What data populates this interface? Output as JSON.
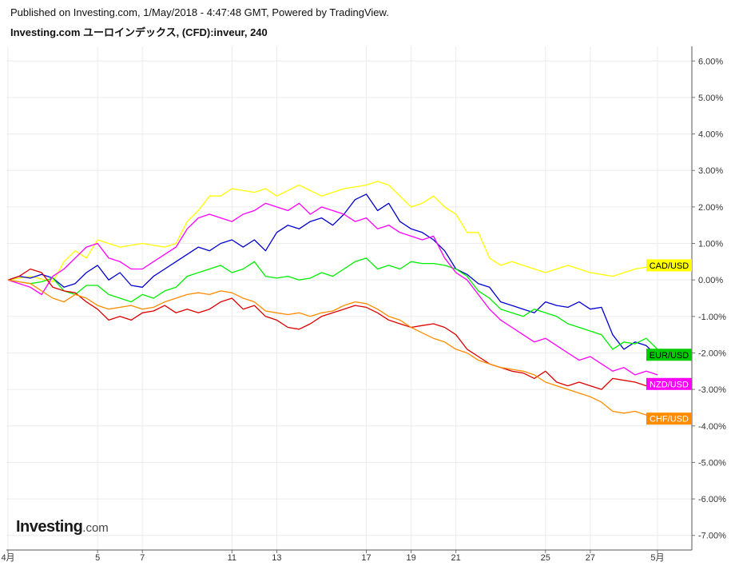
{
  "header": {
    "published": "Published on Investing.com, 1/May/2018 - 4:47:48 GMT, Powered by TradingView.",
    "title": "Investing.com ユーロインデックス, (CFD):inveur, 240"
  },
  "logo": {
    "main": "Investing",
    "sub": ".com"
  },
  "chart_data": {
    "type": "line",
    "ylim": [
      -7.4,
      6.4
    ],
    "yticks": [
      "6.00%",
      "5.00%",
      "4.00%",
      "3.00%",
      "2.00%",
      "1.00%",
      "0.00%",
      "-1.00%",
      "-2.00%",
      "-3.00%",
      "-4.00%",
      "-5.00%",
      "-6.00%",
      "-7.00%"
    ],
    "ytick_values": [
      6,
      5,
      4,
      3,
      2,
      1,
      0,
      -1,
      -2,
      -3,
      -4,
      -5,
      -6,
      -7
    ],
    "xlim": [
      0,
      30
    ],
    "xticks": [
      {
        "x": 0,
        "label": "4月"
      },
      {
        "x": 4,
        "label": "5"
      },
      {
        "x": 6,
        "label": "7"
      },
      {
        "x": 10,
        "label": "11"
      },
      {
        "x": 12,
        "label": "13"
      },
      {
        "x": 16,
        "label": "17"
      },
      {
        "x": 18,
        "label": "19"
      },
      {
        "x": 20,
        "label": "21"
      },
      {
        "x": 24,
        "label": "25"
      },
      {
        "x": 26,
        "label": "27"
      },
      {
        "x": 29,
        "label": "5月"
      }
    ],
    "grid": true,
    "colors": {
      "CAD/USD": "#ffff00",
      "EUR/USD": "#0000cc",
      "EUR_label": "#00cc00",
      "NZD/USD": "#ff00ff",
      "CHF/USD": "#ff8c00",
      "red": "#dd0000",
      "green": "#00ee00"
    },
    "series": [
      {
        "name": "CAD/USD",
        "color": "#ffff00",
        "label": "CAD/USD",
        "label_bg": "#ffff00",
        "label_color": "#000000",
        "label_y": 0.4,
        "x": [
          0,
          1,
          2,
          2.5,
          3,
          3.5,
          4,
          4.5,
          5,
          6,
          7,
          7.5,
          8,
          8.5,
          9,
          9.5,
          10,
          11,
          11.5,
          12,
          13,
          14,
          15,
          16,
          16.5,
          17,
          17.5,
          18,
          18.5,
          19,
          19.5,
          20,
          20.5,
          21,
          21.5,
          22,
          22.5,
          23,
          24,
          25,
          26,
          27,
          28,
          29
        ],
        "y": [
          0,
          0.1,
          -0.05,
          0.5,
          0.8,
          0.6,
          1.1,
          1.0,
          0.9,
          1.0,
          0.9,
          1.0,
          1.6,
          1.9,
          2.3,
          2.3,
          2.5,
          2.4,
          2.5,
          2.3,
          2.6,
          2.3,
          2.5,
          2.6,
          2.7,
          2.6,
          2.3,
          2.0,
          2.1,
          2.3,
          2.0,
          1.8,
          1.3,
          1.3,
          0.6,
          0.4,
          0.5,
          0.4,
          0.2,
          0.4,
          0.2,
          0.1,
          0.3,
          0.4
        ]
      },
      {
        "name": "EUR/USD",
        "color": "#0000cc",
        "label": "EUR/USD",
        "label_bg": "#00cc00",
        "label_color": "#000000",
        "label_y": -2.05,
        "x": [
          0,
          0.5,
          1,
          1.5,
          2,
          2.5,
          3,
          3.5,
          4,
          4.5,
          5,
          5.5,
          6,
          6.5,
          7,
          7.5,
          8,
          8.5,
          9,
          9.5,
          10,
          10.5,
          11,
          11.5,
          12,
          12.5,
          13,
          13.5,
          14,
          14.5,
          15,
          15.5,
          16,
          16.5,
          17,
          17.5,
          18,
          18.5,
          19,
          19.5,
          20,
          20.5,
          21,
          21.5,
          22,
          22.5,
          23,
          23.5,
          24,
          24.5,
          25,
          25.5,
          26,
          26.5,
          27,
          27.5,
          28,
          28.5,
          29
        ],
        "y": [
          0,
          0.1,
          0.05,
          0.15,
          0.05,
          -0.2,
          -0.1,
          0.2,
          0.4,
          0,
          0.2,
          -0.15,
          -0.2,
          0.1,
          0.3,
          0.5,
          0.7,
          0.9,
          0.8,
          1.0,
          1.1,
          0.9,
          1.1,
          0.8,
          1.3,
          1.5,
          1.4,
          1.6,
          1.7,
          1.5,
          1.8,
          2.2,
          2.35,
          1.9,
          2.1,
          1.6,
          1.4,
          1.3,
          1.1,
          0.8,
          0.3,
          0.15,
          -0.1,
          -0.2,
          -0.6,
          -0.7,
          -0.8,
          -0.9,
          -0.6,
          -0.7,
          -0.75,
          -0.6,
          -0.8,
          -0.75,
          -1.5,
          -1.9,
          -1.7,
          -1.8,
          -2.1
        ]
      },
      {
        "name": "green",
        "color": "#00ee00",
        "label": "",
        "label_bg": "",
        "label_color": "",
        "label_y": null,
        "x": [
          0,
          0.5,
          1,
          1.5,
          2,
          2.5,
          3,
          3.5,
          4,
          4.5,
          5,
          5.5,
          6,
          6.5,
          7,
          7.5,
          8,
          8.5,
          9,
          9.5,
          10,
          10.5,
          11,
          11.5,
          12,
          12.5,
          13,
          13.5,
          14,
          14.5,
          15,
          15.5,
          16,
          16.5,
          17,
          17.5,
          18,
          18.5,
          19,
          19.5,
          20,
          20.5,
          21,
          21.5,
          22,
          22.5,
          23,
          23.5,
          24,
          24.5,
          25,
          25.5,
          26,
          26.5,
          27,
          27.5,
          28,
          28.5,
          29
        ],
        "y": [
          0,
          -0.05,
          -0.1,
          -0.05,
          0.05,
          -0.3,
          -0.4,
          -0.15,
          -0.15,
          -0.4,
          -0.5,
          -0.6,
          -0.4,
          -0.5,
          -0.3,
          -0.2,
          0.1,
          0.2,
          0.3,
          0.4,
          0.2,
          0.3,
          0.5,
          0.1,
          0.05,
          0.1,
          0,
          0.05,
          0.2,
          0.1,
          0.3,
          0.5,
          0.6,
          0.3,
          0.4,
          0.3,
          0.5,
          0.45,
          0.45,
          0.4,
          0.3,
          0.1,
          -0.3,
          -0.5,
          -0.8,
          -0.9,
          -1.0,
          -0.8,
          -0.9,
          -1.0,
          -1.2,
          -1.3,
          -1.4,
          -1.5,
          -1.9,
          -1.7,
          -1.75,
          -1.6,
          -1.9
        ]
      },
      {
        "name": "NZD/USD",
        "color": "#ff00ff",
        "label": "NZD/USD",
        "label_bg": "#ff00ff",
        "label_color": "#ffffff",
        "label_y": -2.85,
        "x": [
          0,
          0.5,
          1,
          1.5,
          2,
          2.5,
          3,
          3.5,
          4,
          4.5,
          5,
          5.5,
          6,
          6.5,
          7,
          7.5,
          8,
          8.5,
          9,
          9.5,
          10,
          10.5,
          11,
          11.5,
          12,
          12.5,
          13,
          13.5,
          14,
          14.5,
          15,
          15.5,
          16,
          16.5,
          17,
          17.5,
          18,
          18.5,
          19,
          19.5,
          20,
          20.5,
          21,
          21.5,
          22,
          22.5,
          23,
          23.5,
          24,
          24.5,
          25,
          25.5,
          26,
          26.5,
          27,
          27.5,
          28,
          28.5,
          29
        ],
        "y": [
          0,
          -0.1,
          -0.2,
          -0.4,
          0.1,
          0.3,
          0.6,
          0.9,
          1.0,
          0.6,
          0.5,
          0.3,
          0.3,
          0.5,
          0.7,
          0.9,
          1.4,
          1.7,
          1.8,
          1.7,
          1.6,
          1.8,
          1.9,
          2.1,
          2.0,
          1.9,
          2.1,
          1.8,
          2.0,
          1.9,
          1.8,
          1.6,
          1.7,
          1.4,
          1.5,
          1.3,
          1.2,
          1.1,
          1.2,
          0.6,
          0.2,
          0,
          -0.4,
          -0.8,
          -1.1,
          -1.3,
          -1.5,
          -1.7,
          -1.6,
          -1.8,
          -2.0,
          -2.2,
          -2.1,
          -2.3,
          -2.5,
          -2.4,
          -2.6,
          -2.5,
          -2.6
        ]
      },
      {
        "name": "red",
        "color": "#dd0000",
        "label": "",
        "label_bg": "",
        "label_color": "",
        "label_y": null,
        "x": [
          0,
          0.5,
          1,
          1.5,
          2,
          2.5,
          3,
          3.5,
          4,
          4.5,
          5,
          5.5,
          6,
          6.5,
          7,
          7.5,
          8,
          8.5,
          9,
          9.5,
          10,
          10.5,
          11,
          11.5,
          12,
          12.5,
          13,
          13.5,
          14,
          14.5,
          15,
          15.5,
          16,
          16.5,
          17,
          17.5,
          18,
          18.5,
          19,
          19.5,
          20,
          20.5,
          21,
          21.5,
          22,
          22.5,
          23,
          23.5,
          24,
          24.5,
          25,
          25.5,
          26,
          26.5,
          27,
          27.5,
          28,
          28.5,
          29
        ],
        "y": [
          0,
          0.1,
          0.3,
          0.2,
          -0.2,
          -0.3,
          -0.35,
          -0.6,
          -0.8,
          -1.1,
          -1.0,
          -1.1,
          -0.9,
          -0.85,
          -0.7,
          -0.9,
          -0.8,
          -0.9,
          -0.8,
          -0.6,
          -0.5,
          -0.8,
          -0.7,
          -1.0,
          -1.1,
          -1.3,
          -1.35,
          -1.2,
          -1.0,
          -0.9,
          -0.8,
          -0.7,
          -0.75,
          -0.9,
          -1.1,
          -1.2,
          -1.3,
          -1.25,
          -1.2,
          -1.3,
          -1.5,
          -1.9,
          -2.1,
          -2.3,
          -2.4,
          -2.5,
          -2.55,
          -2.7,
          -2.5,
          -2.8,
          -2.9,
          -2.8,
          -2.9,
          -3.0,
          -2.7,
          -2.75,
          -2.8,
          -2.9,
          -3.0
        ]
      },
      {
        "name": "CHF/USD",
        "color": "#ff8c00",
        "label": "CHF/USD",
        "label_bg": "#ff8c00",
        "label_color": "#ffffff",
        "label_y": -3.8,
        "x": [
          0,
          0.5,
          1,
          1.5,
          2,
          2.5,
          3,
          3.5,
          4,
          4.5,
          5,
          5.5,
          6,
          6.5,
          7,
          7.5,
          8,
          8.5,
          9,
          9.5,
          10,
          10.5,
          11,
          11.5,
          12,
          12.5,
          13,
          13.5,
          14,
          14.5,
          15,
          15.5,
          16,
          16.5,
          17,
          17.5,
          18,
          18.5,
          19,
          19.5,
          20,
          20.5,
          21,
          21.5,
          22,
          22.5,
          23,
          23.5,
          24,
          24.5,
          25,
          25.5,
          26,
          26.5,
          27,
          27.5,
          28,
          28.5,
          29
        ],
        "y": [
          0,
          -0.05,
          -0.1,
          -0.3,
          -0.5,
          -0.6,
          -0.4,
          -0.5,
          -0.7,
          -0.8,
          -0.75,
          -0.7,
          -0.8,
          -0.75,
          -0.6,
          -0.5,
          -0.4,
          -0.35,
          -0.4,
          -0.3,
          -0.35,
          -0.5,
          -0.6,
          -0.85,
          -0.9,
          -0.95,
          -0.9,
          -1.0,
          -0.9,
          -0.85,
          -0.7,
          -0.6,
          -0.65,
          -0.8,
          -1.0,
          -1.1,
          -1.3,
          -1.45,
          -1.6,
          -1.7,
          -1.9,
          -2.0,
          -2.2,
          -2.3,
          -2.4,
          -2.45,
          -2.5,
          -2.6,
          -2.8,
          -2.9,
          -3.0,
          -3.1,
          -3.2,
          -3.35,
          -3.6,
          -3.65,
          -3.6,
          -3.7,
          -3.8
        ]
      }
    ]
  }
}
